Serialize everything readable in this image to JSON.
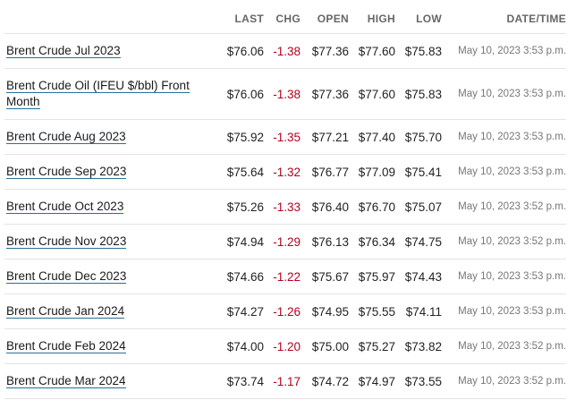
{
  "headers": {
    "last": "LAST",
    "chg": "CHG",
    "open": "OPEN",
    "high": "HIGH",
    "low": "LOW",
    "datetime": "DATE/TIME"
  },
  "colors": {
    "negative_change": "#b4001f",
    "link_underline": "#2a6f97"
  },
  "rows": [
    {
      "name": "Brent Crude Jul 2023",
      "last": "$76.06",
      "chg": "-1.38",
      "open": "$77.36",
      "high": "$77.60",
      "low": "$75.83",
      "datetime": "May 10, 2023 3:53 p.m."
    },
    {
      "name": "Brent Crude Oil (IFEU $/bbl) Front Month",
      "last": "$76.06",
      "chg": "-1.38",
      "open": "$77.36",
      "high": "$77.60",
      "low": "$75.83",
      "datetime": "May 10, 2023 3:53 p.m."
    },
    {
      "name": "Brent Crude Aug 2023",
      "last": "$75.92",
      "chg": "-1.35",
      "open": "$77.21",
      "high": "$77.40",
      "low": "$75.70",
      "datetime": "May 10, 2023 3:53 p.m."
    },
    {
      "name": "Brent Crude Sep 2023",
      "last": "$75.64",
      "chg": "-1.32",
      "open": "$76.77",
      "high": "$77.09",
      "low": "$75.41",
      "datetime": "May 10, 2023 3:53 p.m."
    },
    {
      "name": "Brent Crude Oct 2023",
      "last": "$75.26",
      "chg": "-1.33",
      "open": "$76.40",
      "high": "$76.70",
      "low": "$75.07",
      "datetime": "May 10, 2023 3:52 p.m."
    },
    {
      "name": "Brent Crude Nov 2023",
      "last": "$74.94",
      "chg": "-1.29",
      "open": "$76.13",
      "high": "$76.34",
      "low": "$74.75",
      "datetime": "May 10, 2023 3:52 p.m."
    },
    {
      "name": "Brent Crude Dec 2023",
      "last": "$74.66",
      "chg": "-1.22",
      "open": "$75.67",
      "high": "$75.97",
      "low": "$74.43",
      "datetime": "May 10, 2023 3:53 p.m."
    },
    {
      "name": "Brent Crude Jan 2024",
      "last": "$74.27",
      "chg": "-1.26",
      "open": "$74.95",
      "high": "$75.55",
      "low": "$74.11",
      "datetime": "May 10, 2023 3:53 p.m."
    },
    {
      "name": "Brent Crude Feb 2024",
      "last": "$74.00",
      "chg": "-1.20",
      "open": "$75.00",
      "high": "$75.27",
      "low": "$73.82",
      "datetime": "May 10, 2023 3:52 p.m."
    },
    {
      "name": "Brent Crude Mar 2024",
      "last": "$73.74",
      "chg": "-1.17",
      "open": "$74.72",
      "high": "$74.97",
      "low": "$73.55",
      "datetime": "May 10, 2023 3:52 p.m."
    }
  ]
}
